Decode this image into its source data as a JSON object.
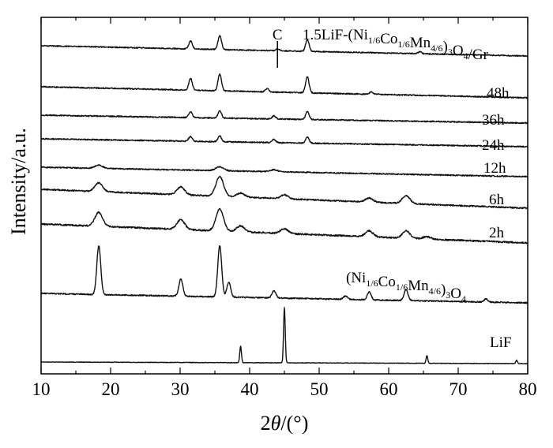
{
  "chart_data": {
    "type": "line",
    "xlabel_var": "2θ",
    "xlabel_unit": "/(°)",
    "ylabel": "Intensity/a.u.",
    "xlim": [
      10,
      80
    ],
    "xticks": [
      10,
      20,
      30,
      40,
      50,
      60,
      70,
      80
    ],
    "y_ticks_shown": false,
    "grid": false,
    "annotation": {
      "text": "C",
      "x": 44
    },
    "series": [
      {
        "name": "LiF",
        "label_parts": [
          {
            "t": "LiF"
          }
        ],
        "peaks": [
          [
            38.7,
            0.3
          ],
          [
            45.0,
            1.0
          ],
          [
            65.5,
            0.14
          ],
          [
            78.4,
            0.06
          ]
        ]
      },
      {
        "name": "(Ni1/6Co1/6Mn4/6)3O4",
        "label_parts": [
          {
            "t": "(Ni"
          },
          {
            "t": "1/6",
            "sub": true
          },
          {
            "t": "Co"
          },
          {
            "t": "1/6",
            "sub": true
          },
          {
            "t": "Mn"
          },
          {
            "t": "4/6",
            "sub": true
          },
          {
            "t": ")"
          },
          {
            "t": "3",
            "sub": true
          },
          {
            "t": "O"
          },
          {
            "t": "4",
            "sub": true
          }
        ],
        "peaks": [
          [
            18.3,
            1.0
          ],
          [
            30.1,
            0.35
          ],
          [
            35.7,
            1.05
          ],
          [
            37.0,
            0.3
          ],
          [
            43.5,
            0.15
          ],
          [
            53.8,
            0.07
          ],
          [
            57.2,
            0.16
          ],
          [
            62.5,
            0.22
          ],
          [
            74.0,
            0.06
          ]
        ]
      },
      {
        "name": "2h",
        "label_parts": [
          {
            "t": "2h"
          }
        ],
        "peaks": [
          [
            18.3,
            0.35
          ],
          [
            30.1,
            0.25
          ],
          [
            35.7,
            0.55
          ],
          [
            38.7,
            0.15
          ],
          [
            45.0,
            0.12
          ],
          [
            57.2,
            0.15
          ],
          [
            62.5,
            0.18
          ],
          [
            65.5,
            0.06
          ]
        ]
      },
      {
        "name": "6h",
        "label_parts": [
          {
            "t": "6h"
          }
        ],
        "peaks": [
          [
            18.3,
            0.22
          ],
          [
            30.1,
            0.2
          ],
          [
            35.7,
            0.5
          ],
          [
            38.7,
            0.1
          ],
          [
            45.0,
            0.1
          ],
          [
            57.2,
            0.1
          ],
          [
            62.5,
            0.2
          ]
        ]
      },
      {
        "name": "12h",
        "label_parts": [
          {
            "t": "12h"
          }
        ],
        "peaks": [
          [
            18.3,
            0.08
          ],
          [
            35.7,
            0.1
          ],
          [
            43.5,
            0.05
          ]
        ]
      },
      {
        "name": "24h",
        "label_parts": [
          {
            "t": "24h"
          }
        ],
        "peaks": [
          [
            31.5,
            0.12
          ],
          [
            35.7,
            0.15
          ],
          [
            43.5,
            0.08
          ],
          [
            48.3,
            0.15
          ]
        ]
      },
      {
        "name": "36h",
        "label_parts": [
          {
            "t": "36h"
          }
        ],
        "peaks": [
          [
            31.5,
            0.15
          ],
          [
            35.7,
            0.18
          ],
          [
            43.5,
            0.08
          ],
          [
            48.3,
            0.2
          ]
        ]
      },
      {
        "name": "48h",
        "label_parts": [
          {
            "t": "48h"
          }
        ],
        "peaks": [
          [
            31.5,
            0.3
          ],
          [
            35.7,
            0.42
          ],
          [
            42.5,
            0.08
          ],
          [
            48.3,
            0.4
          ],
          [
            57.5,
            0.06
          ]
        ]
      },
      {
        "name": "1.5LiF-(Ni1/6Co1/6Mn4/6)3O4/Gr",
        "label_parts": [
          {
            "t": "1.5LiF-(Ni"
          },
          {
            "t": "1/6",
            "sub": true
          },
          {
            "t": "Co"
          },
          {
            "t": "1/6",
            "sub": true
          },
          {
            "t": "Mn"
          },
          {
            "t": "4/6",
            "sub": true
          },
          {
            "t": ")"
          },
          {
            "t": "3",
            "sub": true
          },
          {
            "t": "O"
          },
          {
            "t": "4",
            "sub": true
          },
          {
            "t": "/Gr"
          }
        ],
        "peaks": [
          [
            31.5,
            0.2
          ],
          [
            35.7,
            0.35
          ],
          [
            44.0,
            0.05
          ],
          [
            48.3,
            0.3
          ],
          [
            64.5,
            0.05
          ]
        ]
      }
    ]
  }
}
